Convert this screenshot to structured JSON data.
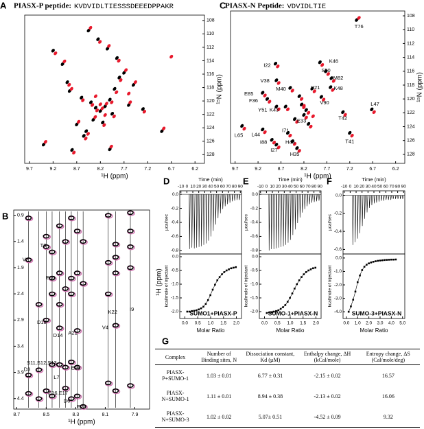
{
  "panel_a": {
    "label": "A",
    "title": "PIASX-P peptide:",
    "sequence": "KVDVIDLTIESSSDEEEDPPAKR",
    "xlabel": "¹H (ppm)",
    "ylabel": "¹⁵N (ppm)",
    "xlim": [
      9.8,
      6.0
    ],
    "ylim": [
      129.3,
      107.2
    ],
    "xticks": [
      9.7,
      9.2,
      8.7,
      8.2,
      7.7,
      7.2,
      6.7,
      6.2
    ],
    "yticks": [
      108,
      110,
      112,
      114,
      116,
      118,
      120,
      122,
      124,
      126,
      128
    ],
    "reference_color": "#000000",
    "complex_color": "#e8192c",
    "black_peaks": {
      "h": [
        8.85,
        8.6,
        8.4,
        8.3,
        8.2,
        8.1,
        8.0,
        7.9,
        7.8,
        7.7,
        8.7,
        8.5,
        8.35,
        8.15,
        7.95,
        7.6,
        9.2,
        9.0,
        8.9,
        8.45,
        8.25,
        8.05,
        7.85,
        7.5,
        7.3,
        6.9,
        9.4,
        8.8,
        8.55,
        8.0
      ],
      "n": [
        118.5,
        119.5,
        120.2,
        121,
        121.5,
        120.8,
        119.8,
        118.2,
        116.5,
        115.8,
        123.5,
        124.5,
        122.8,
        123.2,
        121.9,
        120.6,
        112.5,
        114.5,
        117.2,
        109.5,
        110.8,
        112.2,
        113.6,
        117.6,
        121.2,
        124.5,
        126.5,
        127.3,
        125.2,
        127.2
      ]
    },
    "red_peaks": {
      "h": [
        8.81,
        8.57,
        8.37,
        8.27,
        8.16,
        8.07,
        7.96,
        7.86,
        7.77,
        7.66,
        8.66,
        8.46,
        8.31,
        8.12,
        7.91,
        7.57,
        9.15,
        8.96,
        8.86,
        8.41,
        8.21,
        8.02,
        7.81,
        7.46,
        7.27,
        6.86,
        9.36,
        8.76,
        8.51,
        7.97,
        8.3,
        8.2,
        8.1,
        7.6,
        6.7
      ],
      "n": [
        118.2,
        119.9,
        120.6,
        121.4,
        121.1,
        120.4,
        120.2,
        118.7,
        116.9,
        115.4,
        123.1,
        124.9,
        122.4,
        123.6,
        122.3,
        120.2,
        112.9,
        114.1,
        117.6,
        109.1,
        111.2,
        111.8,
        114.0,
        117.2,
        121.6,
        124.1,
        126.1,
        127.7,
        125.6,
        126.8,
        119.3,
        120.5,
        122.1,
        118.9,
        113.4
      ]
    }
  },
  "panel_c": {
    "label": "C",
    "title": "PIASX-N Peptide:",
    "sequence": "VDVIDLTIE",
    "xlabel": "¹H (ppm)",
    "ylabel": "¹⁵N (ppm)",
    "xlim": [
      9.8,
      6.0
    ],
    "ylim": [
      129.3,
      107.3
    ],
    "xticks": [
      9.7,
      9.2,
      8.7,
      8.2,
      7.7,
      7.2,
      6.7,
      6.2
    ],
    "yticks": [
      108,
      110,
      112,
      114,
      116,
      118,
      120,
      122,
      124,
      126,
      128
    ],
    "reference_color": "#000000",
    "complex_color": "#e8192c",
    "black_peaks": {
      "h": [
        7.05,
        7.85,
        7.72,
        7.6,
        7.62,
        8.82,
        8.8,
        8.5,
        8.02,
        7.82,
        9.1,
        9.0,
        8.8,
        8.6,
        8.2,
        7.35,
        6.72,
        9.55,
        9.1,
        7.2,
        8.55,
        8.9,
        8.45,
        8.8,
        8.35,
        8.3,
        8.25,
        8.15,
        8.4,
        8.1
      ],
      "n": [
        108.6,
        114.7,
        116,
        117,
        118.3,
        114.9,
        117.3,
        118.4,
        118.5,
        119.7,
        119.1,
        120,
        121.1,
        121.1,
        122.3,
        121.9,
        121.5,
        123.9,
        124.4,
        124.9,
        124.9,
        125.9,
        126.1,
        126.6,
        127.1,
        119.6,
        120.8,
        121.6,
        122.9,
        123.6
      ]
    },
    "red_peaks": {
      "h": [
        7.0,
        7.8,
        7.67,
        7.55,
        7.57,
        8.77,
        8.75,
        8.45,
        7.97,
        7.77,
        9.05,
        8.95,
        8.75,
        8.55,
        8.15,
        7.3,
        6.67,
        9.5,
        9.05,
        7.15,
        8.5,
        8.85,
        8.4,
        8.75,
        8.3,
        8.25,
        8.2,
        8.1,
        8.35,
        8.05,
        8.2,
        8.0
      ],
      "n": [
        108.3,
        115.1,
        116.4,
        117.4,
        118.7,
        115.3,
        117.7,
        118.8,
        118.9,
        120.1,
        119.5,
        120.4,
        121.5,
        121.5,
        122.7,
        122.3,
        121.9,
        124.3,
        124.8,
        125.3,
        125.3,
        126.3,
        126.5,
        127,
        127.5,
        120,
        121.2,
        122,
        123.3,
        124,
        121.0,
        122.5
      ]
    },
    "annotations": [
      {
        "text": "T76",
        "h": 7.0,
        "n": 109.6
      },
      {
        "text": "K46",
        "h": 7.55,
        "n": 114.6
      },
      {
        "text": "S50",
        "h": 7.72,
        "n": 115.9
      },
      {
        "text": "M82",
        "h": 7.45,
        "n": 117.0
      },
      {
        "text": "K48",
        "h": 7.45,
        "n": 118.5
      },
      {
        "text": "I22",
        "h": 9.0,
        "n": 115.2
      },
      {
        "text": "V38",
        "h": 9.05,
        "n": 117.4
      },
      {
        "text": "M40",
        "h": 8.7,
        "n": 118.6
      },
      {
        "text": "Y21",
        "h": 7.95,
        "n": 118.4
      },
      {
        "text": "V90",
        "h": 7.75,
        "n": 120.6
      },
      {
        "text": "E85",
        "h": 9.4,
        "n": 119.3
      },
      {
        "text": "F36",
        "h": 9.3,
        "n": 120.3
      },
      {
        "text": "Y51",
        "h": 9.1,
        "n": 121.6
      },
      {
        "text": "K43",
        "h": 8.85,
        "n": 121.6
      },
      {
        "text": "E33",
        "h": 8.25,
        "n": 123.2
      },
      {
        "text": "T42",
        "h": 7.35,
        "n": 122.8
      },
      {
        "text": "L47",
        "h": 6.65,
        "n": 120.8
      },
      {
        "text": "L65",
        "h": 9.62,
        "n": 125.3
      },
      {
        "text": "L44",
        "h": 9.25,
        "n": 125.2
      },
      {
        "text": "T41",
        "h": 7.2,
        "n": 126.2
      },
      {
        "text": "I71",
        "h": 8.6,
        "n": 124.6
      },
      {
        "text": "I88",
        "h": 9.08,
        "n": 126.3
      },
      {
        "text": "H43",
        "h": 8.5,
        "n": 126.3
      },
      {
        "text": "I27",
        "h": 8.85,
        "n": 127.4
      },
      {
        "text": "H35",
        "h": 8.4,
        "n": 128.0
      }
    ]
  },
  "panel_b": {
    "label": "B",
    "xlabel": "¹H (ppm)",
    "ylabel": "¹H (ppm)",
    "xlim": [
      8.72,
      7.8
    ],
    "ylim": [
      4.6,
      0.8
    ],
    "xticks": [
      8.7,
      8.5,
      8.3,
      8.1,
      7.9
    ],
    "yticks": [
      0.9,
      1.4,
      1.9,
      2.4,
      2.9,
      3.4,
      3.9,
      4.4
    ],
    "peak_color": "#000000",
    "overlay_color": "#d070b0",
    "strips": [
      {
        "h": 8.62,
        "peaks": [
          0.95,
          1.75,
          3.95,
          4.3
        ]
      },
      {
        "h": 8.55,
        "peaks": [
          2.6,
          3.85,
          4.4
        ]
      },
      {
        "h": 8.5,
        "peaks": [
          1.3,
          1.5,
          2.9,
          4.25
        ]
      },
      {
        "h": 8.46,
        "peaks": [
          1.6,
          2.1,
          2.4,
          3.75,
          4.35
        ]
      },
      {
        "h": 8.41,
        "peaks": [
          1.1,
          2.0,
          2.6,
          3.05,
          3.75
        ]
      },
      {
        "h": 8.37,
        "peaks": [
          1.4,
          2.3,
          3.8,
          4.2
        ]
      },
      {
        "h": 8.33,
        "peaks": [
          0.95,
          2.1,
          2.4,
          3.7,
          4.4
        ]
      },
      {
        "h": 8.29,
        "peaks": [
          1.2,
          2.0,
          3.1,
          3.8,
          4.35
        ]
      },
      {
        "h": 8.25,
        "peaks": [
          1.4,
          2.2,
          4.55
        ]
      },
      {
        "h": 8.08,
        "peaks": [
          0.9,
          1.8,
          2.4,
          4.1
        ]
      },
      {
        "h": 8.03,
        "peaks": [
          1.45,
          1.7,
          2.0,
          3.0,
          4.25
        ]
      },
      {
        "h": 7.93,
        "peaks": [
          0.85,
          1.2,
          1.5,
          1.9,
          4.15
        ]
      }
    ],
    "annotations": [
      {
        "text": "V2",
        "h": 8.64,
        "hh": 1.75
      },
      {
        "text": "T8",
        "h": 8.52,
        "hh": 1.48
      },
      {
        "text": "E10",
        "h": 8.47,
        "hh": 2.1
      },
      {
        "text": "D18",
        "h": 8.53,
        "hh": 2.95
      },
      {
        "text": "D14",
        "h": 8.42,
        "hh": 3.2
      },
      {
        "text": "A21",
        "h": 8.32,
        "hh": 3.15
      },
      {
        "text": "V4",
        "h": 8.1,
        "hh": 3.05
      },
      {
        "text": "K22",
        "h": 8.05,
        "hh": 2.75
      },
      {
        "text": "I9",
        "h": 7.92,
        "hh": 2.7
      },
      {
        "text": "D3",
        "h": 8.63,
        "hh": 3.85
      },
      {
        "text": "S11,S12,S13",
        "h": 8.53,
        "hh": 3.72
      },
      {
        "text": "L7",
        "h": 8.43,
        "hh": 4.0
      },
      {
        "text": "E15",
        "h": 8.3,
        "hh": 3.82
      },
      {
        "text": "E16,E17",
        "h": 8.42,
        "hh": 4.3
      },
      {
        "text": "D6",
        "h": 8.36,
        "hh": 4.45
      },
      {
        "text": "F23",
        "h": 8.26,
        "hh": 4.56
      }
    ]
  },
  "itc": [
    {
      "label": "D",
      "time_label": "Time (min)",
      "power_label": "µcal/sec",
      "heat_label": "kcal/mole of injectant",
      "ratio_label": "Molar Ratio",
      "complex": "SUMO1+PIASX-P",
      "time_lim": [
        -12,
        92
      ],
      "time_ticks": [
        -10,
        0,
        10,
        20,
        30,
        40,
        50,
        60,
        70,
        80,
        90
      ],
      "power_lim": [
        -0.85,
        0.05
      ],
      "power_ticks": [
        {
          "value": 0,
          "label": "0.0"
        },
        -0.2,
        -0.4,
        -0.6,
        -0.8
      ],
      "ratio_lim": [
        -0.2,
        2.2
      ],
      "ratio_ticks": [
        {
          "value": 0,
          "label": "0.0"
        },
        0.5,
        {
          "value": 1,
          "label": "1.0"
        },
        1.5,
        {
          "value": 2,
          "label": "2.0"
        }
      ],
      "heat_lim": [
        -2.25,
        0.1
      ],
      "heat_ticks": [
        {
          "value": 0,
          "label": "0.0"
        },
        -0.5,
        {
          "value": -1,
          "label": "-1.0"
        },
        -1.5,
        {
          "value": -2,
          "label": "-2.0"
        }
      ],
      "injection_times": [
        4,
        8,
        12,
        16,
        20,
        24,
        28,
        32,
        36,
        40,
        44,
        48,
        52,
        56,
        60,
        64,
        68,
        72,
        76,
        80,
        84,
        88
      ],
      "injection_peaks": [
        -0.78,
        -0.76,
        -0.77,
        -0.76,
        -0.75,
        -0.74,
        -0.72,
        -0.7,
        -0.66,
        -0.6,
        -0.52,
        -0.43,
        -0.34,
        -0.27,
        -0.21,
        -0.17,
        -0.14,
        -0.12,
        -0.1,
        -0.09,
        -0.08,
        -0.08
      ],
      "molar_ratio": [
        0.09,
        0.18,
        0.27,
        0.36,
        0.45,
        0.54,
        0.63,
        0.72,
        0.81,
        0.9,
        0.99,
        1.08,
        1.17,
        1.26,
        1.35,
        1.44,
        1.53,
        1.62,
        1.71,
        1.8,
        1.89,
        1.98
      ],
      "heat": [
        -2.0,
        -2.0,
        -1.98,
        -1.97,
        -1.95,
        -1.92,
        -1.88,
        -1.82,
        -1.72,
        -1.58,
        -1.4,
        -1.2,
        -1.02,
        -0.86,
        -0.74,
        -0.64,
        -0.56,
        -0.5,
        -0.46,
        -0.42,
        -0.4,
        -0.38
      ],
      "point_color": "#000000"
    },
    {
      "label": "E",
      "time_label": "Time (min)",
      "power_label": "µcal/sec",
      "heat_label": "kcal/mole of injectant",
      "ratio_label": "Molar Ratio",
      "complex": "SUMO-1+PIASX-N",
      "time_lim": [
        -12,
        92
      ],
      "time_ticks": [
        -10,
        0,
        10,
        20,
        30,
        40,
        50,
        60,
        70,
        80,
        90
      ],
      "power_lim": [
        -0.85,
        0.05
      ],
      "power_ticks": [
        {
          "value": 0,
          "label": "0.0"
        },
        -0.2,
        -0.4,
        -0.6,
        -0.8
      ],
      "ratio_lim": [
        -0.2,
        2.2
      ],
      "ratio_ticks": [
        {
          "value": 0,
          "label": "0.0"
        },
        0.5,
        {
          "value": 1,
          "label": "1.0"
        },
        1.5,
        {
          "value": 2,
          "label": "2.0"
        }
      ],
      "heat_lim": [
        -2.25,
        0.1
      ],
      "heat_ticks": [
        {
          "value": 0,
          "label": "0.0"
        },
        -0.5,
        {
          "value": -1,
          "label": "-1.0"
        },
        -1.5,
        {
          "value": -2,
          "label": "-2.0"
        }
      ],
      "injection_times": [
        4,
        8,
        12,
        16,
        20,
        24,
        28,
        32,
        36,
        40,
        44,
        48,
        52,
        56,
        60,
        64,
        68,
        72,
        76,
        80,
        84,
        88
      ],
      "injection_peaks": [
        -0.8,
        -0.78,
        -0.78,
        -0.77,
        -0.76,
        -0.75,
        -0.74,
        -0.72,
        -0.69,
        -0.65,
        -0.58,
        -0.5,
        -0.41,
        -0.33,
        -0.26,
        -0.21,
        -0.17,
        -0.14,
        -0.12,
        -0.11,
        -0.1,
        -0.09
      ],
      "molar_ratio": [
        0.09,
        0.18,
        0.27,
        0.36,
        0.45,
        0.54,
        0.63,
        0.72,
        0.81,
        0.9,
        0.99,
        1.08,
        1.17,
        1.26,
        1.35,
        1.44,
        1.53,
        1.62,
        1.71,
        1.8,
        1.89,
        1.98
      ],
      "heat": [
        -2.05,
        -2.03,
        -2.02,
        -2.0,
        -1.98,
        -1.95,
        -1.9,
        -1.84,
        -1.76,
        -1.64,
        -1.5,
        -1.34,
        -1.16,
        -1.0,
        -0.86,
        -0.74,
        -0.64,
        -0.56,
        -0.5,
        -0.46,
        -0.42,
        -0.4
      ],
      "point_color": "#000000"
    },
    {
      "label": "F",
      "time_label": "Time (min)",
      "power_label": "µcal/sec",
      "heat_label": "kcal/mole of injectant",
      "ratio_label": "Molar Ratio",
      "complex": "SUMO-3+PIASX-N",
      "time_lim": [
        -12,
        92
      ],
      "time_ticks": [
        -10,
        0,
        10,
        20,
        30,
        40,
        50,
        60,
        70,
        80,
        90
      ],
      "power_lim": [
        -0.65,
        0.05
      ],
      "power_ticks": [
        {
          "value": 0,
          "label": "0.0"
        },
        -0.2,
        -0.4,
        -0.6
      ],
      "ratio_lim": [
        -0.3,
        5.2
      ],
      "ratio_ticks": [
        {
          "value": 0,
          "label": "0.0"
        },
        {
          "value": 1,
          "label": "1.0"
        },
        {
          "value": 2,
          "label": "2.0"
        },
        {
          "value": 3,
          "label": "3.0"
        },
        {
          "value": 4,
          "label": "4.0"
        },
        {
          "value": 5,
          "label": "5.0"
        }
      ],
      "heat_lim": [
        -4.5,
        0.3
      ],
      "heat_ticks": [
        {
          "value": 0,
          "label": "0.0"
        },
        {
          "value": -1,
          "label": "-1.0"
        },
        {
          "value": -2,
          "label": "-2.0"
        },
        {
          "value": -3,
          "label": "-3.0"
        },
        {
          "value": -4,
          "label": "-4.0"
        }
      ],
      "injection_times": [
        4,
        8,
        12,
        16,
        20,
        24,
        28,
        32,
        36,
        40,
        44,
        48,
        52,
        56,
        60,
        64,
        68,
        72,
        76,
        80,
        84,
        88
      ],
      "injection_peaks": [
        -0.55,
        -0.52,
        -0.48,
        -0.42,
        -0.34,
        -0.26,
        -0.19,
        -0.14,
        -0.11,
        -0.09,
        -0.08,
        -0.07,
        -0.06,
        -0.06,
        -0.05,
        -0.05,
        -0.05,
        -0.04,
        -0.04,
        -0.04,
        -0.04,
        -0.04
      ],
      "molar_ratio": [
        0.2,
        0.4,
        0.6,
        0.8,
        1.0,
        1.2,
        1.4,
        1.6,
        1.8,
        2.0,
        2.2,
        2.4,
        2.6,
        2.8,
        3.0,
        3.2,
        3.4,
        3.6,
        3.8,
        4.0,
        4.2,
        4.4
      ],
      "heat": [
        -4.0,
        -3.6,
        -3.1,
        -2.5,
        -1.8,
        -1.3,
        -0.9,
        -0.65,
        -0.5,
        -0.4,
        -0.33,
        -0.28,
        -0.24,
        -0.21,
        -0.19,
        -0.17,
        -0.15,
        -0.14,
        -0.13,
        -0.12,
        -0.12,
        -0.11
      ],
      "point_color": "#000000"
    }
  ],
  "table": {
    "label": "G",
    "header": [
      "Complex",
      "Number of Binding sites, N",
      "Dissociation constant, Kd (µM)",
      "Enthalpy change, ΔH (kCal/mole)",
      "Entropy change, ΔS (Cal/mole/deg)"
    ],
    "rows": [
      [
        "PIASX-P+SUMO-1",
        "1.03 ± 0.01",
        "6.77 ± 0.31",
        "-2.15 ± 0.02",
        "16.57"
      ],
      [
        "PIASX-N+SUMO-1",
        "1.11 ± 0.01",
        "8.94 ± 0.38",
        "-2.13 ± 0.02",
        "16.06"
      ],
      [
        "PIASX-N+SUMO-3",
        "1.02 ± 0.02",
        "5.07± 0.51",
        "-4.52 ± 0.09",
        "9.32"
      ]
    ]
  }
}
